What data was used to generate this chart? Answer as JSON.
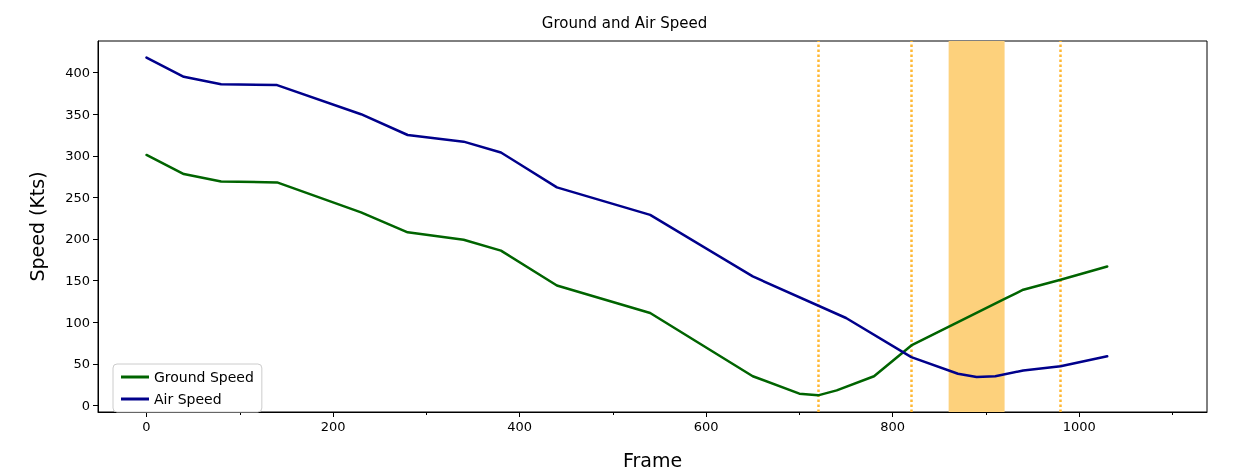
{
  "chart_data": {
    "type": "line",
    "title": "Ground and Air Speed",
    "xlabel": "Frame",
    "ylabel": "Speed (Kts)",
    "xlim": [
      -52,
      1137
    ],
    "xticks": [
      0,
      200,
      400,
      600,
      800,
      1000
    ],
    "ylim": [
      -8,
      438
    ],
    "yticks": [
      0,
      50,
      100,
      150,
      200,
      250,
      300,
      350,
      400
    ],
    "grid": false,
    "legend": "bottom left",
    "line_style": "solid",
    "marker": "none",
    "series": [
      {
        "name": "Ground Speed",
        "color": "#006400",
        "x": [
          0,
          40,
          80,
          140,
          230,
          280,
          340,
          380,
          440,
          540,
          650,
          700,
          720,
          740,
          780,
          820,
          870,
          920,
          940,
          980,
          1030
        ],
        "values": [
          301,
          278,
          269,
          268,
          232,
          208,
          199,
          186,
          144,
          111,
          35,
          14,
          12,
          18,
          35,
          72,
          100,
          128,
          139,
          151,
          167
        ]
      },
      {
        "name": "Air Speed",
        "color": "#00008b",
        "x": [
          0,
          40,
          80,
          140,
          230,
          280,
          340,
          380,
          440,
          540,
          650,
          750,
          820,
          870,
          890,
          910,
          940,
          980,
          1030
        ],
        "values": [
          418,
          395,
          386,
          385,
          350,
          325,
          317,
          304,
          262,
          229,
          155,
          105,
          58,
          38,
          34,
          35,
          42,
          47,
          59
        ]
      }
    ],
    "ref_lines": [
      {
        "axis": "x",
        "value": 720,
        "color": "#ffb833",
        "line_style": "dotted"
      },
      {
        "axis": "x",
        "value": 820,
        "color": "#ffb833",
        "line_style": "dotted"
      },
      {
        "axis": "x",
        "value": 980,
        "color": "#ffb833",
        "line_style": "dotted"
      }
    ],
    "bands": [
      {
        "axis": "x",
        "from": 860,
        "to": 920,
        "color": "#fdd17c"
      }
    ]
  }
}
